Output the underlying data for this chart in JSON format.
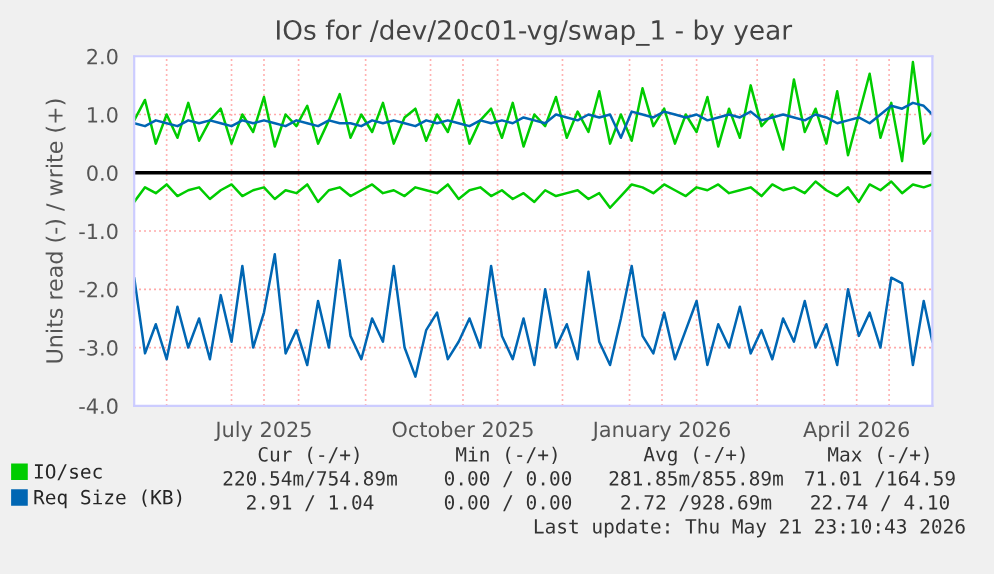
{
  "chart_data": {
    "type": "line",
    "title": "IOs for /dev/20c01-vg/swap_1 - by year",
    "ylabel": "Units read (-) / write (+)",
    "x": [
      "2025-05-17",
      "2025-05-22",
      "2025-05-27",
      "2025-06-01",
      "2025-06-06",
      "2025-06-11",
      "2025-06-16",
      "2025-06-21",
      "2025-06-26",
      "2025-07-01",
      "2025-07-06",
      "2025-07-11",
      "2025-07-16",
      "2025-07-21",
      "2025-07-26",
      "2025-07-31",
      "2025-08-05",
      "2025-08-10",
      "2025-08-15",
      "2025-08-20",
      "2025-08-25",
      "2025-08-30",
      "2025-09-04",
      "2025-09-09",
      "2025-09-14",
      "2025-09-19",
      "2025-09-24",
      "2025-09-29",
      "2025-10-04",
      "2025-10-09",
      "2025-10-14",
      "2025-10-19",
      "2025-10-24",
      "2025-10-29",
      "2025-11-03",
      "2025-11-08",
      "2025-11-13",
      "2025-11-18",
      "2025-11-23",
      "2025-11-28",
      "2025-12-03",
      "2025-12-08",
      "2025-12-13",
      "2025-12-18",
      "2025-12-23",
      "2025-12-28",
      "2026-01-02",
      "2026-01-07",
      "2026-01-12",
      "2026-01-17",
      "2026-01-22",
      "2026-01-27",
      "2026-02-01",
      "2026-02-06",
      "2026-02-11",
      "2026-02-16",
      "2026-02-21",
      "2026-02-26",
      "2026-03-03",
      "2026-03-08",
      "2026-03-13",
      "2026-03-18",
      "2026-03-23",
      "2026-03-28",
      "2026-04-02",
      "2026-04-07",
      "2026-04-12",
      "2026-04-17",
      "2026-04-22",
      "2026-04-27",
      "2026-05-02",
      "2026-05-07",
      "2026-05-12",
      "2026-05-17",
      "2026-05-21"
    ],
    "series": [
      {
        "name": "IO/sec",
        "color": "#00cc00",
        "values": [
          0.9,
          1.25,
          0.5,
          1.0,
          0.6,
          1.2,
          0.55,
          0.9,
          1.1,
          0.5,
          1.0,
          0.7,
          1.3,
          0.45,
          1.0,
          0.8,
          1.15,
          0.5,
          0.9,
          1.35,
          0.6,
          1.0,
          0.7,
          1.2,
          0.5,
          0.95,
          1.1,
          0.55,
          1.0,
          0.7,
          1.25,
          0.5,
          0.9,
          1.1,
          0.6,
          1.2,
          0.45,
          1.0,
          0.8,
          1.3,
          0.6,
          1.05,
          0.7,
          1.4,
          0.5,
          1.0,
          0.55,
          1.45,
          0.8,
          1.1,
          0.5,
          1.0,
          0.7,
          1.3,
          0.45,
          1.1,
          0.6,
          1.5,
          0.8,
          1.0,
          0.4,
          1.6,
          0.7,
          1.1,
          0.5,
          1.4,
          0.3,
          1.0,
          1.7,
          0.6,
          1.2,
          0.2,
          1.9,
          0.5,
          0.7
        ]
      },
      {
        "color": "#00cc00",
        "values": [
          -0.5,
          -0.25,
          -0.35,
          -0.2,
          -0.4,
          -0.3,
          -0.25,
          -0.45,
          -0.3,
          -0.2,
          -0.4,
          -0.3,
          -0.25,
          -0.45,
          -0.3,
          -0.35,
          -0.2,
          -0.5,
          -0.3,
          -0.25,
          -0.4,
          -0.3,
          -0.2,
          -0.35,
          -0.3,
          -0.4,
          -0.25,
          -0.3,
          -0.35,
          -0.2,
          -0.45,
          -0.3,
          -0.25,
          -0.4,
          -0.3,
          -0.45,
          -0.35,
          -0.5,
          -0.3,
          -0.4,
          -0.35,
          -0.3,
          -0.45,
          -0.35,
          -0.6,
          -0.4,
          -0.2,
          -0.25,
          -0.35,
          -0.2,
          -0.3,
          -0.4,
          -0.25,
          -0.3,
          -0.2,
          -0.35,
          -0.3,
          -0.25,
          -0.4,
          -0.2,
          -0.3,
          -0.25,
          -0.35,
          -0.15,
          -0.3,
          -0.4,
          -0.25,
          -0.5,
          -0.2,
          -0.3,
          -0.15,
          -0.35,
          -0.2,
          -0.25,
          -0.2
        ]
      },
      {
        "name": "Req Size (KB)",
        "color": "#0066b3",
        "values": [
          0.85,
          0.8,
          0.9,
          0.85,
          0.8,
          0.9,
          0.85,
          0.9,
          0.85,
          0.8,
          0.9,
          0.85,
          0.9,
          0.85,
          0.8,
          0.9,
          0.85,
          0.8,
          0.9,
          0.85,
          0.85,
          0.8,
          0.9,
          0.85,
          0.9,
          0.85,
          0.8,
          0.9,
          0.85,
          0.9,
          0.85,
          0.8,
          0.9,
          0.85,
          0.9,
          0.85,
          0.95,
          0.9,
          0.85,
          1.0,
          0.95,
          0.9,
          1.0,
          0.95,
          1.0,
          0.6,
          1.05,
          1.0,
          0.95,
          1.05,
          1.0,
          0.95,
          1.0,
          0.9,
          0.95,
          1.0,
          0.95,
          1.05,
          0.9,
          0.95,
          1.0,
          0.95,
          0.9,
          1.0,
          0.95,
          0.85,
          0.9,
          0.95,
          0.85,
          1.0,
          1.15,
          1.1,
          1.2,
          1.15,
          1.0
        ]
      },
      {
        "color": "#0066b3",
        "values": [
          -1.8,
          -3.1,
          -2.6,
          -3.2,
          -2.3,
          -3.0,
          -2.5,
          -3.2,
          -2.1,
          -2.9,
          -1.6,
          -3.0,
          -2.4,
          -1.4,
          -3.1,
          -2.7,
          -3.3,
          -2.2,
          -3.0,
          -1.5,
          -2.8,
          -3.2,
          -2.5,
          -2.9,
          -1.6,
          -3.0,
          -3.5,
          -2.7,
          -2.4,
          -3.2,
          -2.9,
          -2.5,
          -3.0,
          -1.6,
          -2.8,
          -3.2,
          -2.5,
          -3.3,
          -2.0,
          -3.0,
          -2.6,
          -3.2,
          -1.7,
          -2.9,
          -3.3,
          -2.5,
          -1.6,
          -2.8,
          -3.1,
          -2.4,
          -3.2,
          -2.7,
          -2.2,
          -3.3,
          -2.6,
          -3.0,
          -2.3,
          -3.1,
          -2.7,
          -3.2,
          -2.5,
          -2.9,
          -2.2,
          -3.0,
          -2.6,
          -3.3,
          -2.0,
          -2.8,
          -2.4,
          -3.0,
          -1.8,
          -1.9,
          -3.3,
          -2.2,
          -2.9
        ]
      }
    ],
    "xlim": [
      "2025-05-17",
      "2026-05-21"
    ],
    "xticks": [
      {
        "value": "2025-06-01",
        "label": null
      },
      {
        "value": "2025-07-01",
        "label": null
      },
      {
        "value": "2025-07-16",
        "label": "July 2025"
      },
      {
        "value": "2025-08-01",
        "label": null
      },
      {
        "value": "2025-09-01",
        "label": null
      },
      {
        "value": "2025-10-01",
        "label": null
      },
      {
        "value": "2025-10-16",
        "label": "October 2025"
      },
      {
        "value": "2025-11-01",
        "label": null
      },
      {
        "value": "2025-12-01",
        "label": null
      },
      {
        "value": "2026-01-01",
        "label": null
      },
      {
        "value": "2026-01-16",
        "label": "January 2026"
      },
      {
        "value": "2026-02-01",
        "label": null
      },
      {
        "value": "2026-03-01",
        "label": null
      },
      {
        "value": "2026-04-01",
        "label": null
      },
      {
        "value": "2026-04-16",
        "label": "April 2026"
      },
      {
        "value": "2026-05-01",
        "label": null
      }
    ],
    "ylim": [
      -4,
      2
    ],
    "yticks": [
      {
        "value": -4,
        "label": "-4.0"
      },
      {
        "value": -3,
        "label": "-3.0"
      },
      {
        "value": -2,
        "label": "-2.0"
      },
      {
        "value": -1,
        "label": "-1.0"
      },
      {
        "value": 0,
        "label": "0.0"
      },
      {
        "value": 1,
        "label": "1.0"
      },
      {
        "value": 2,
        "label": "2.0"
      }
    ],
    "ref_lines": [
      {
        "axis": "y",
        "value": 0,
        "color": "#000000"
      }
    ],
    "grid": true,
    "legend": "bottom left",
    "marker": "none",
    "line_style": "solid",
    "annotations": [
      "Cur (-/+)",
      "Min (-/+)",
      "Avg (-/+)",
      "Max (-/+)",
      "220.54m/754.89m",
      "0.00 / 0.00",
      "281.85m/855.89m",
      "71.01 /164.59",
      "2.91 / 1.04",
      "0.00 / 0.00",
      "2.72 /928.69m",
      "22.74 / 4.10",
      "Last update: Thu May 21 23:10:43 2026"
    ]
  }
}
